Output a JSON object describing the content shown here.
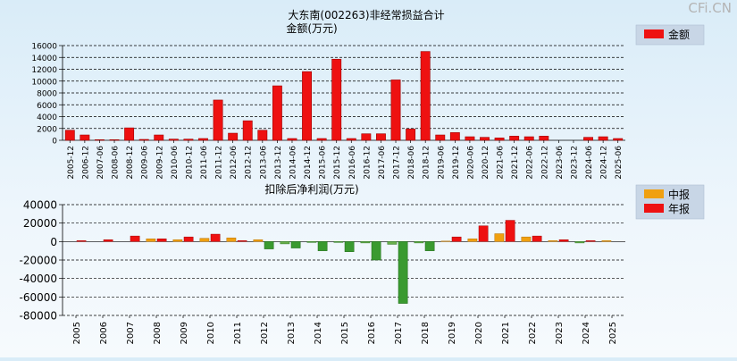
{
  "watermark": "CFi.CN",
  "chart_data": [
    {
      "type": "bar",
      "title": "大东南(002263)非经常损益合计",
      "ylabel": "金额(万元)",
      "legend": [
        {
          "name": "金额",
          "color": "#ee1111"
        }
      ],
      "legend_position": "top-right",
      "ylim": [
        0,
        16000
      ],
      "yticks": [
        0,
        2000,
        4000,
        6000,
        8000,
        10000,
        12000,
        14000,
        16000
      ],
      "grid": true,
      "categories": [
        "2005-12",
        "2006-12",
        "2007-06",
        "2008-06",
        "2008-12",
        "2009-06",
        "2009-12",
        "2010-06",
        "2010-12",
        "2011-06",
        "2011-12",
        "2012-06",
        "2012-12",
        "2013-06",
        "2013-12",
        "2014-06",
        "2014-12",
        "2015-06",
        "2015-12",
        "2016-06",
        "2016-12",
        "2017-06",
        "2017-12",
        "2018-06",
        "2018-12",
        "2019-06",
        "2019-12",
        "2020-06",
        "2020-12",
        "2021-06",
        "2021-12",
        "2022-06",
        "2022-12",
        "2023-06",
        "2023-12",
        "2024-06",
        "2024-12",
        "2025-06"
      ],
      "series": [
        {
          "name": "金额",
          "color": "#ee1111",
          "values": [
            1700,
            900,
            100,
            100,
            2100,
            150,
            900,
            200,
            200,
            300,
            6800,
            1200,
            3300,
            1700,
            9200,
            300,
            11600,
            300,
            13700,
            300,
            1100,
            1100,
            10200,
            1900,
            15000,
            900,
            1300,
            600,
            500,
            400,
            700,
            600,
            700,
            0,
            0,
            500,
            600,
            300
          ]
        }
      ]
    },
    {
      "type": "bar",
      "title": "扣除后净利润(万元)",
      "legend": [
        {
          "name": "中报",
          "color": "#f0a010"
        },
        {
          "name": "年报",
          "color": "#ee1111"
        }
      ],
      "legend_position": "top-right",
      "ylim": [
        -80000,
        40000
      ],
      "yticks": [
        -80000,
        -60000,
        -40000,
        -20000,
        0,
        20000,
        40000
      ],
      "grid": true,
      "categories": [
        "2005",
        "2006",
        "2007",
        "2008",
        "2009",
        "2010",
        "2011",
        "2012",
        "2013",
        "2014",
        "2015",
        "2016",
        "2017",
        "2018",
        "2019",
        "2020",
        "2021",
        "2022",
        "2023",
        "2024",
        "2025"
      ],
      "negative_color": "#3a9a30",
      "series": [
        {
          "name": "中报",
          "values": [
            null,
            null,
            0,
            3000,
            2000,
            3500,
            4000,
            2000,
            -2500,
            -1000,
            -1000,
            -1500,
            -3000,
            -1500,
            500,
            3000,
            8500,
            5000,
            1000,
            -1500,
            1000
          ]
        },
        {
          "name": "年报",
          "values": [
            1000,
            2000,
            6000,
            3000,
            5000,
            8000,
            1000,
            -8000,
            -7000,
            -10000,
            -11000,
            -20000,
            -67000,
            -10000,
            5000,
            17000,
            23000,
            6000,
            2000,
            1000,
            null
          ]
        }
      ]
    }
  ]
}
